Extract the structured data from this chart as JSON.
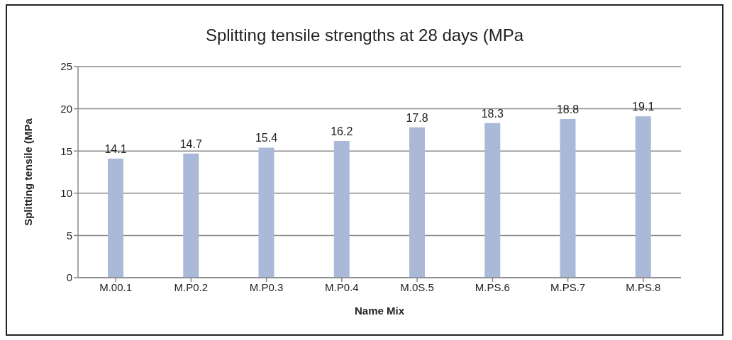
{
  "chart_data": {
    "type": "bar",
    "title": "Splitting tensile strengths at 28 days (MPa",
    "xlabel": "Name Mix",
    "ylabel": "Splitting tensile (MPa",
    "categories": [
      "M.00.1",
      "M.P0.2",
      "M.P0.3",
      "M.P0.4",
      "M.0S.5",
      "M.PS.6",
      "M.PS.7",
      "M.PS.8"
    ],
    "values": [
      14.1,
      14.7,
      15.4,
      16.2,
      17.8,
      18.3,
      18.8,
      19.1
    ],
    "color": "#aab9d8",
    "ylim": [
      0,
      25
    ],
    "yticks": [
      0,
      5,
      10,
      15,
      20,
      25
    ],
    "grid": "y",
    "data_labels": true
  }
}
